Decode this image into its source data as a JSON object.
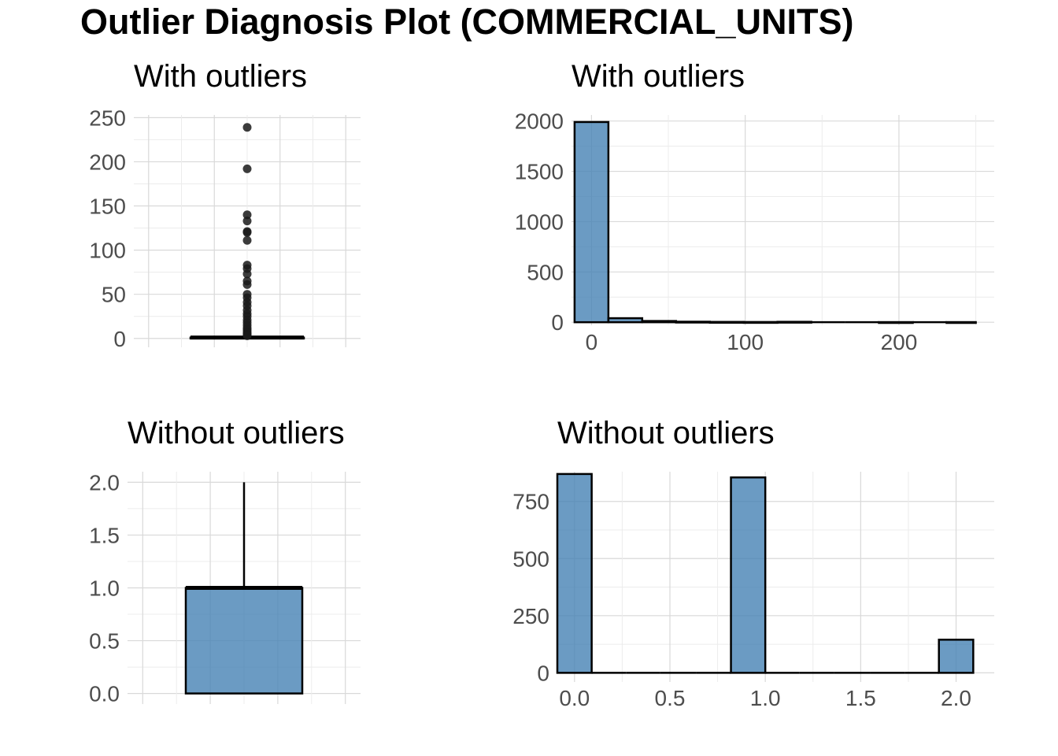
{
  "title": "Outlier Diagnosis Plot (COMMERCIAL_UNITS)",
  "colors": {
    "fill": "#4682b4",
    "outline": "#000000",
    "grid": "#d9d9d9",
    "tick_text": "#4d4d4d"
  },
  "chart_data": [
    {
      "id": "box-with",
      "type": "box",
      "title": "With outliers",
      "xlabel": "",
      "ylabel": "",
      "ylim": [
        -10,
        253
      ],
      "y_ticks": [
        0,
        50,
        100,
        150,
        200,
        250
      ],
      "box": {
        "min": 0,
        "q1": 0,
        "median": 1,
        "q3": 1,
        "max": 2
      },
      "outliers": [
        239,
        192,
        140,
        133,
        121,
        120,
        111,
        83,
        79,
        73,
        65,
        61,
        50,
        46,
        41,
        37,
        32,
        28,
        25,
        21,
        18,
        15,
        12,
        10,
        8,
        6,
        5,
        4,
        3
      ],
      "grid": true
    },
    {
      "id": "hist-with",
      "type": "bar",
      "title": "With outliers",
      "xlabel": "",
      "ylabel": "",
      "xlim": [
        -13,
        262
      ],
      "ylim": [
        -30,
        2060
      ],
      "x_ticks": [
        0,
        100,
        200
      ],
      "y_ticks": [
        0,
        500,
        1000,
        1500,
        2000
      ],
      "bin_width": 22,
      "bins": [
        {
          "x0": -11,
          "x1": 11,
          "count": 1990
        },
        {
          "x0": 11,
          "x1": 33,
          "count": 40
        },
        {
          "x0": 33,
          "x1": 55,
          "count": 12
        },
        {
          "x0": 55,
          "x1": 77,
          "count": 5
        },
        {
          "x0": 77,
          "x1": 99,
          "count": 3
        },
        {
          "x0": 99,
          "x1": 121,
          "count": 2
        },
        {
          "x0": 121,
          "x1": 143,
          "count": 4
        },
        {
          "x0": 143,
          "x1": 165,
          "count": 0
        },
        {
          "x0": 165,
          "x1": 187,
          "count": 0
        },
        {
          "x0": 187,
          "x1": 209,
          "count": 1
        },
        {
          "x0": 209,
          "x1": 231,
          "count": 0
        },
        {
          "x0": 231,
          "x1": 250,
          "count": 1
        }
      ],
      "grid": true
    },
    {
      "id": "box-without",
      "type": "box",
      "title": "Without outliers",
      "xlabel": "",
      "ylabel": "",
      "ylim": [
        -0.1,
        2.1
      ],
      "y_ticks": [
        0.0,
        0.5,
        1.0,
        1.5,
        2.0
      ],
      "y_tick_labels": [
        "0.0",
        "0.5",
        "1.0",
        "1.5",
        "2.0"
      ],
      "box": {
        "min": 0,
        "q1": 0,
        "median": 1,
        "q3": 1,
        "max": 2
      },
      "outliers": [],
      "grid": true
    },
    {
      "id": "hist-without",
      "type": "bar",
      "title": "Without outliers",
      "xlabel": "",
      "ylabel": "",
      "xlim": [
        -0.09,
        2.2
      ],
      "ylim": [
        -40,
        880
      ],
      "x_ticks": [
        0.0,
        0.5,
        1.0,
        1.5,
        2.0
      ],
      "x_tick_labels": [
        "0.0",
        "0.5",
        "1.0",
        "1.5",
        "2.0"
      ],
      "y_ticks": [
        0,
        250,
        500,
        750
      ],
      "bins": [
        {
          "x0": -0.09,
          "x1": 0.09,
          "count": 870
        },
        {
          "x0": 0.09,
          "x1": 0.27,
          "count": 0
        },
        {
          "x0": 0.27,
          "x1": 0.45,
          "count": 0
        },
        {
          "x0": 0.45,
          "x1": 0.64,
          "count": 0
        },
        {
          "x0": 0.64,
          "x1": 0.82,
          "count": 0
        },
        {
          "x0": 0.82,
          "x1": 1.0,
          "count": 855
        },
        {
          "x0": 1.0,
          "x1": 1.18,
          "count": 0
        },
        {
          "x0": 1.18,
          "x1": 1.36,
          "count": 0
        },
        {
          "x0": 1.36,
          "x1": 1.55,
          "count": 0
        },
        {
          "x0": 1.55,
          "x1": 1.73,
          "count": 0
        },
        {
          "x0": 1.73,
          "x1": 1.91,
          "count": 0
        },
        {
          "x0": 1.91,
          "x1": 2.09,
          "count": 145
        }
      ],
      "grid": true
    }
  ]
}
